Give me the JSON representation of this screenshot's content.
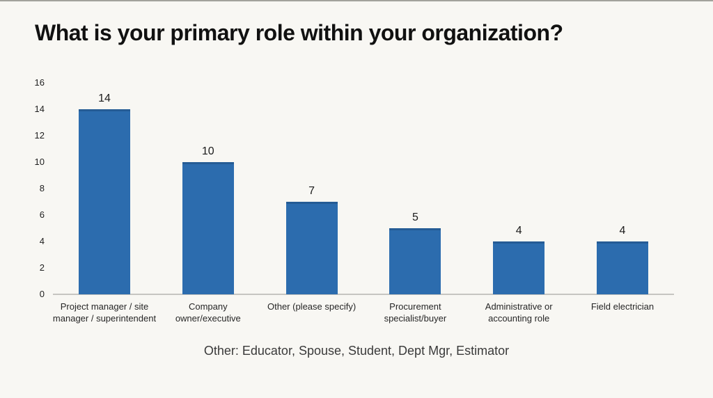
{
  "title": "What is your primary role within your organization?",
  "note": "Other: Educator, Spouse, Student, Dept Mgr, Estimator",
  "colors": {
    "background": "#f8f7f3",
    "bar": "#2c6cae",
    "axis_line": "#c6c5c1",
    "title_text": "#111111",
    "label_text": "#262626"
  },
  "chart_data": {
    "type": "bar",
    "title": "What is your primary role within your organization?",
    "categories": [
      "Project manager / site manager / superintendent",
      "Company owner/executive",
      "Other (please specify)",
      "Procurement specialist/buyer",
      "Administrative or accounting role",
      "Field electrician"
    ],
    "values": [
      14,
      10,
      7,
      5,
      4,
      4
    ],
    "data_labels": [
      14,
      10,
      7,
      5,
      4,
      4
    ],
    "xlabel": "",
    "ylabel": "",
    "ylim": [
      0,
      16
    ],
    "yticks": [
      0,
      2,
      4,
      6,
      8,
      10,
      12,
      14,
      16
    ],
    "grid": false,
    "legend": false,
    "bar_color": "#2c6cae",
    "annotation": "Other: Educator, Spouse, Student, Dept Mgr, Estimator"
  }
}
